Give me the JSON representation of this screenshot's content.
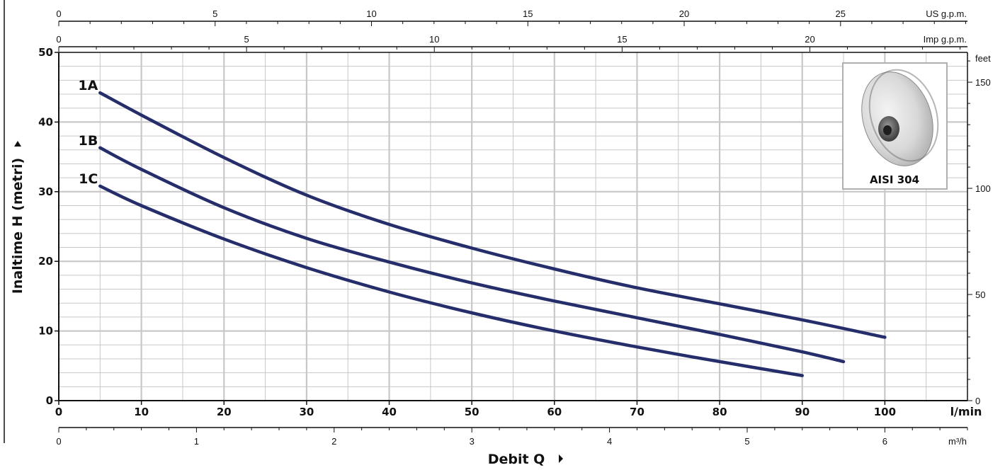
{
  "chart_data": {
    "type": "line",
    "xlabel": "Debit Q",
    "ylabel": "Inaltime H (metri)",
    "x_unit": "l/min",
    "xlim": [
      0,
      110
    ],
    "ylim": [
      0,
      50
    ],
    "x_ticks": [
      "0",
      "10",
      "20",
      "30",
      "40",
      "50",
      "60",
      "70",
      "80",
      "90",
      "100"
    ],
    "y_ticks": [
      "0",
      "10",
      "20",
      "30",
      "40",
      "50"
    ],
    "grid": true,
    "secondary_axes": {
      "us_gpm": {
        "label": "US g.p.m.",
        "ticks": [
          "0",
          "5",
          "10",
          "15",
          "20",
          "25"
        ]
      },
      "imp_gpm": {
        "label": "Imp g.p.m.",
        "ticks": [
          "0",
          "5",
          "10",
          "15",
          "20"
        ]
      },
      "m3h": {
        "label": "m³/h",
        "ticks": [
          "0",
          "1",
          "2",
          "3",
          "4",
          "5",
          "6"
        ]
      },
      "feet": {
        "label": "feet",
        "ticks": [
          "0",
          "50",
          "100",
          "150"
        ]
      }
    },
    "series": [
      {
        "name": "1A",
        "x": [
          5,
          10,
          20,
          30,
          40,
          50,
          60,
          70,
          80,
          90,
          100
        ],
        "y": [
          44.2,
          41,
          34.9,
          29.5,
          25.3,
          21.9,
          18.9,
          16.2,
          13.9,
          11.6,
          9.1
        ]
      },
      {
        "name": "1B",
        "x": [
          5,
          10,
          20,
          30,
          40,
          50,
          60,
          70,
          80,
          90,
          95
        ],
        "y": [
          36.3,
          33.2,
          27.7,
          23.3,
          19.9,
          16.9,
          14.3,
          11.9,
          9.5,
          7.0,
          5.6
        ]
      },
      {
        "name": "1C",
        "x": [
          5,
          10,
          20,
          30,
          40,
          50,
          60,
          70,
          80,
          90
        ],
        "y": [
          30.8,
          28.0,
          23.2,
          19.1,
          15.6,
          12.6,
          10.0,
          7.7,
          5.6,
          3.6
        ]
      }
    ],
    "inset": {
      "label": "AISI 304"
    },
    "colors": {
      "curve": "#252e6b",
      "grid": "#c8c8c8",
      "axis": "#111111"
    }
  }
}
